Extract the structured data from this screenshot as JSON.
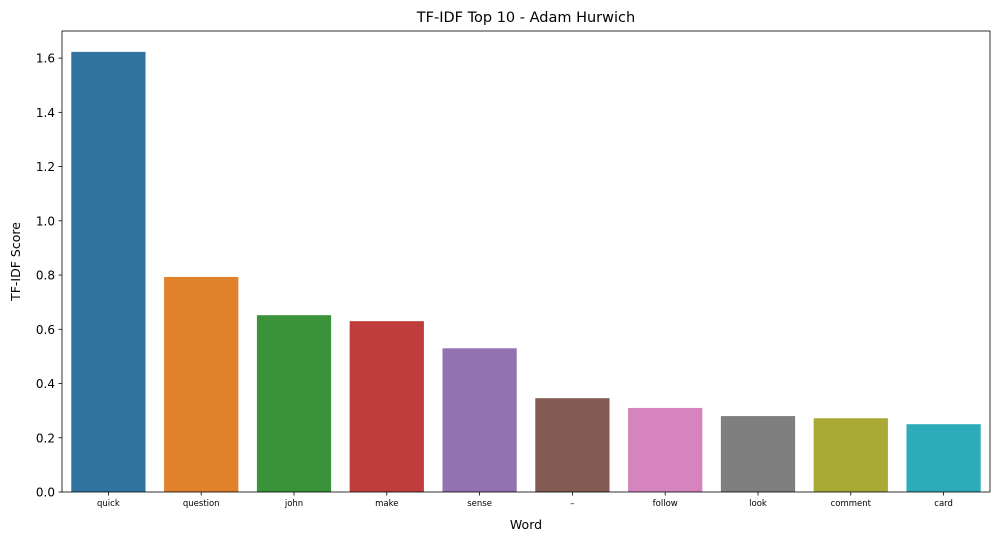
{
  "chart_data": {
    "type": "bar",
    "title": "TF-IDF Top 10 - Adam Hurwich",
    "xlabel": "Word",
    "ylabel": "TF-IDF Score",
    "categories": [
      "quick",
      "question",
      "john",
      "make",
      "sense",
      "–",
      "follow",
      "look",
      "comment",
      "card"
    ],
    "values": [
      1.623,
      0.793,
      0.652,
      0.63,
      0.53,
      0.346,
      0.31,
      0.28,
      0.272,
      0.25
    ],
    "colors": [
      "#3274a1",
      "#e1812c",
      "#3a923a",
      "#c03d3e",
      "#9372b2",
      "#845b53",
      "#d684bd",
      "#7f7f7f",
      "#a9aa35",
      "#2eabb8"
    ],
    "ylim": [
      0,
      1.7
    ],
    "yticks": [
      0.0,
      0.2,
      0.4,
      0.6,
      0.8,
      1.0,
      1.2,
      1.4,
      1.6
    ],
    "ytick_labels": [
      "0.0",
      "0.2",
      "0.4",
      "0.6",
      "0.8",
      "1.0",
      "1.2",
      "1.4",
      "1.6"
    ],
    "grid": false,
    "legend": "none"
  }
}
